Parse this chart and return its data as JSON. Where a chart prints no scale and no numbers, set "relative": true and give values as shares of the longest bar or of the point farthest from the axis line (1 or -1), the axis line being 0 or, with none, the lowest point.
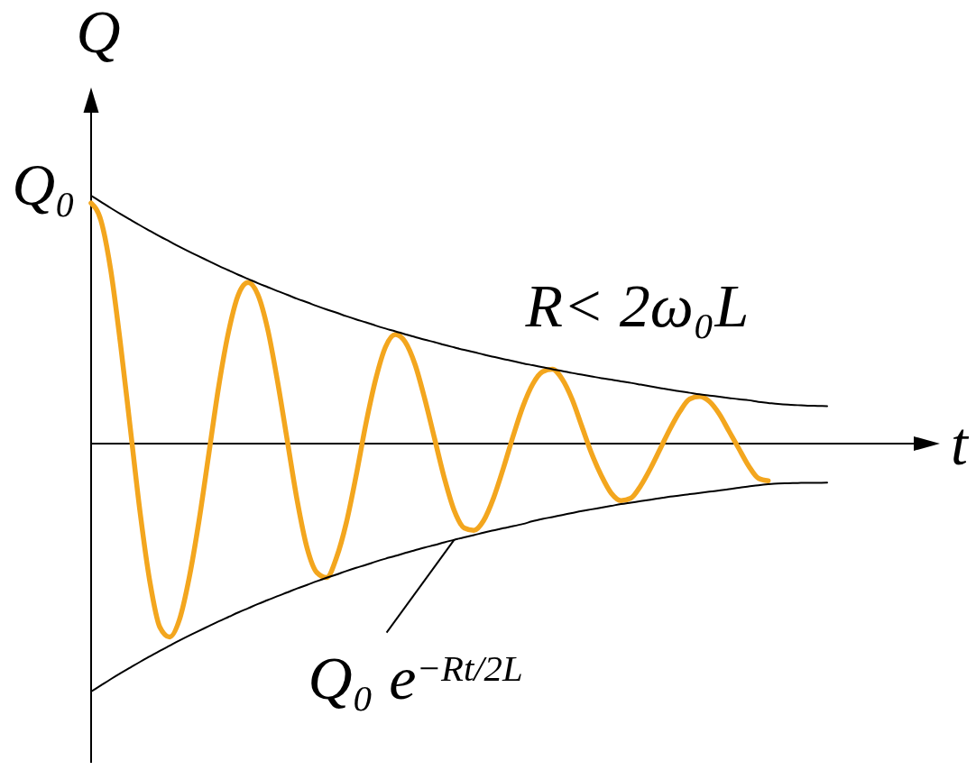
{
  "chart_data": {
    "type": "line",
    "xlabel": "t",
    "ylabel": "Q",
    "relative": true,
    "categories": [
      null,
      null,
      null,
      null,
      null,
      null,
      null,
      null,
      null,
      null,
      null,
      null,
      null,
      null,
      null,
      null,
      null,
      null,
      null,
      null,
      null,
      null,
      null,
      null,
      null,
      null,
      null,
      null,
      null,
      null,
      null,
      null,
      null,
      null,
      null,
      null,
      null,
      null,
      null,
      null,
      null,
      null,
      null,
      null,
      null,
      null,
      null,
      null,
      null,
      null,
      null,
      null,
      null,
      null,
      null,
      null,
      null,
      null,
      null,
      null,
      null,
      null,
      null,
      null,
      null,
      null,
      null,
      null,
      null,
      null,
      null,
      null,
      null,
      null,
      null,
      null
    ],
    "series": [
      {
        "color": "#f3a61e",
        "values": [
          0.97,
          0.9,
          0.7,
          0.4,
          0.06,
          -0.28,
          -0.56,
          -0.74,
          -0.78,
          -0.71,
          -0.54,
          -0.31,
          -0.04,
          0.23,
          0.45,
          0.6,
          0.65,
          0.6,
          0.46,
          0.25,
          0.01,
          -0.23,
          -0.42,
          -0.52,
          -0.54,
          -0.46,
          -0.32,
          -0.13,
          0.08,
          0.26,
          0.39,
          0.44,
          0.41,
          0.32,
          0.18,
          0.02,
          -0.14,
          -0.27,
          -0.34,
          -0.35,
          -0.31,
          -0.22,
          -0.1,
          0.03,
          0.15,
          0.24,
          0.29,
          0.3,
          0.26,
          0.18,
          0.07,
          -0.04,
          -0.13,
          -0.2,
          -0.23,
          -0.22,
          -0.17,
          -0.1,
          -0.02,
          0.06,
          0.13,
          0.18,
          0.19,
          0.17,
          0.12,
          0.05,
          -0.02,
          -0.09,
          -0.14,
          -0.15,
          null,
          null,
          null,
          null,
          null,
          null
        ]
      },
      {
        "color": "#000000",
        "values": [
          1.0,
          0.975,
          0.95,
          0.926,
          0.903,
          0.88,
          0.858,
          0.836,
          0.815,
          0.794,
          0.774,
          0.755,
          0.736,
          0.717,
          0.699,
          0.681,
          0.664,
          0.647,
          0.631,
          0.615,
          0.6,
          0.584,
          0.57,
          0.555,
          0.541,
          0.528,
          0.514,
          0.501,
          0.489,
          0.476,
          0.464,
          0.453,
          0.441,
          0.43,
          0.419,
          0.409,
          0.398,
          0.388,
          0.378,
          0.369,
          0.359,
          0.35,
          0.341,
          0.333,
          0.324,
          0.316,
          0.308,
          0.3,
          0.293,
          0.285,
          0.278,
          0.271,
          0.264,
          0.258,
          0.251,
          0.245,
          0.238,
          0.231,
          0.224,
          0.217,
          0.211,
          0.205,
          0.199,
          0.194,
          0.189,
          0.184,
          0.179,
          0.175,
          0.168,
          0.164,
          0.16,
          0.157,
          0.155,
          0.153,
          0.152,
          0.151
        ]
      },
      {
        "name": "Q₀ e$^{−Rt/2L}$",
        "color": "#000000",
        "values": [
          -1.0,
          -0.975,
          -0.95,
          -0.926,
          -0.903,
          -0.88,
          -0.858,
          -0.836,
          -0.815,
          -0.794,
          -0.774,
          -0.755,
          -0.736,
          -0.717,
          -0.699,
          -0.681,
          -0.664,
          -0.647,
          -0.631,
          -0.615,
          -0.6,
          -0.584,
          -0.57,
          -0.555,
          -0.541,
          -0.528,
          -0.514,
          -0.501,
          -0.489,
          -0.476,
          -0.464,
          -0.453,
          -0.441,
          -0.43,
          -0.419,
          -0.409,
          -0.398,
          -0.388,
          -0.378,
          -0.369,
          -0.359,
          -0.35,
          -0.341,
          -0.333,
          -0.324,
          -0.313,
          -0.304,
          -0.296,
          -0.288,
          -0.28,
          -0.272,
          -0.265,
          -0.258,
          -0.251,
          -0.244,
          -0.238,
          -0.232,
          -0.226,
          -0.22,
          -0.214,
          -0.209,
          -0.204,
          -0.199,
          -0.194,
          -0.189,
          -0.184,
          -0.178,
          -0.173,
          -0.168,
          -0.164,
          -0.161,
          -0.16,
          -0.159,
          -0.158,
          -0.158,
          -0.157
        ]
      }
    ],
    "annotations": [
      "Q₀",
      "R< 2ω₀L"
    ]
  }
}
